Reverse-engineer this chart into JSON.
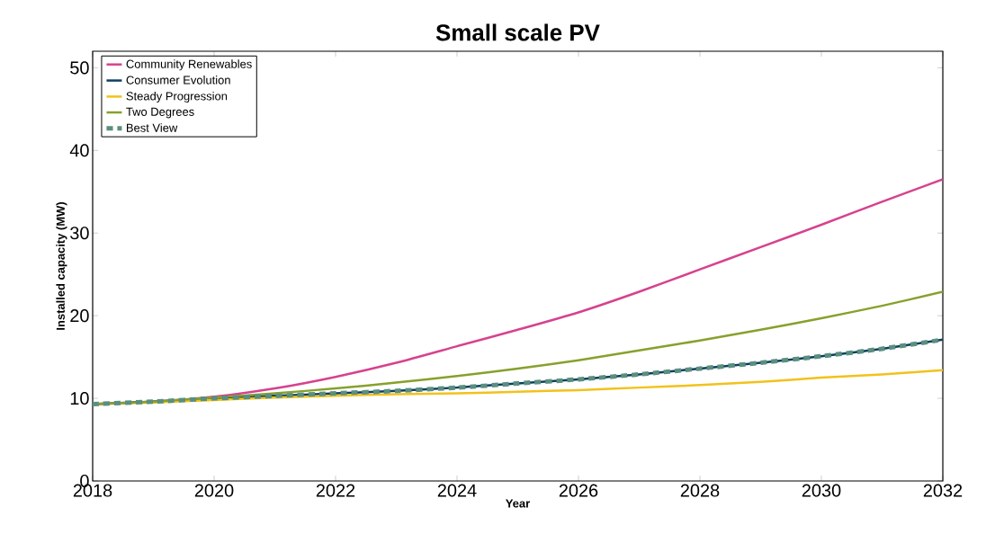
{
  "chart_data": {
    "type": "line",
    "title": "Small scale PV",
    "xlabel": "Year",
    "ylabel": "Installed capacity (MW)",
    "x": [
      2018,
      2019,
      2020,
      2021,
      2022,
      2023,
      2024,
      2025,
      2026,
      2027,
      2028,
      2029,
      2030,
      2031,
      2032
    ],
    "series": [
      {
        "name": "Community Renewables",
        "color": "#d6428e",
        "values": [
          9.3,
          9.6,
          10.2,
          11.2,
          12.6,
          14.3,
          16.3,
          18.3,
          20.4,
          22.9,
          25.6,
          28.3,
          31.0,
          33.8,
          36.5
        ]
      },
      {
        "name": "Consumer Evolution",
        "color": "#0d3f5f",
        "values": [
          9.3,
          9.6,
          10.0,
          10.3,
          10.6,
          10.9,
          11.3,
          11.8,
          12.3,
          12.9,
          13.6,
          14.3,
          15.1,
          16.0,
          17.1
        ]
      },
      {
        "name": "Steady Progression",
        "color": "#f2c21b",
        "values": [
          9.3,
          9.5,
          9.8,
          10.1,
          10.3,
          10.5,
          10.6,
          10.8,
          11.0,
          11.3,
          11.6,
          12.0,
          12.5,
          12.9,
          13.4
        ]
      },
      {
        "name": "Two Degrees",
        "color": "#86a12c",
        "values": [
          9.3,
          9.6,
          10.1,
          10.6,
          11.2,
          11.9,
          12.7,
          13.6,
          14.6,
          15.8,
          17.0,
          18.3,
          19.7,
          21.2,
          22.9
        ]
      },
      {
        "name": "Best View",
        "color": "#5a8f80",
        "line_style": "dashed",
        "values": [
          9.3,
          9.6,
          10.0,
          10.3,
          10.6,
          10.9,
          11.3,
          11.8,
          12.3,
          12.9,
          13.6,
          14.3,
          15.1,
          16.0,
          17.1
        ]
      }
    ],
    "xlim": [
      2018,
      2032
    ],
    "ylim": [
      0,
      52
    ],
    "xticks": [
      2018,
      2020,
      2022,
      2024,
      2026,
      2028,
      2030,
      2032
    ],
    "yticks": [
      0,
      10,
      20,
      30,
      40,
      50
    ],
    "grid": false,
    "legend": "top left",
    "marker": "none",
    "line_style": "solid"
  }
}
